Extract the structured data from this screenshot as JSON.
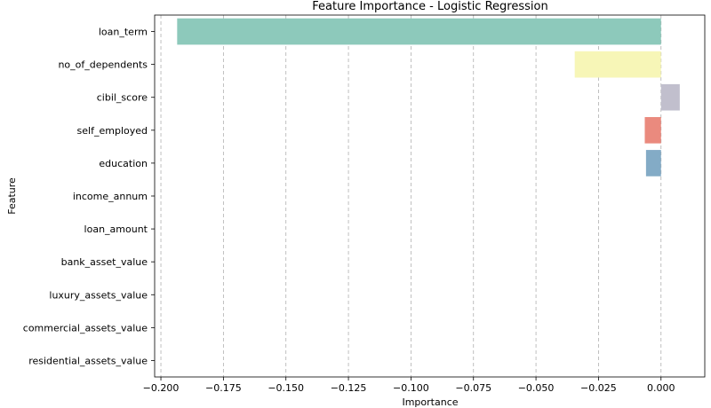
{
  "chart_data": {
    "type": "bar",
    "orientation": "horizontal",
    "title": "Feature Importance - Logistic Regression",
    "xlabel": "Importance",
    "ylabel": "Feature",
    "xlim": [
      -0.2025,
      0.0175
    ],
    "xticks": [
      -0.2,
      -0.175,
      -0.15,
      -0.125,
      -0.1,
      -0.075,
      -0.05,
      -0.025,
      0.0
    ],
    "xtick_labels": [
      "−0.200",
      "−0.175",
      "−0.150",
      "−0.125",
      "−0.100",
      "−0.075",
      "−0.050",
      "−0.025",
      "0.000"
    ],
    "grid": "x, dashed",
    "categories": [
      "loan_term",
      "no_of_dependents",
      "cibil_score",
      "self_employed",
      "education",
      "income_annum",
      "loan_amount",
      "bank_asset_value",
      "luxury_assets_value",
      "commercial_assets_value",
      "residential_assets_value"
    ],
    "values": [
      -0.1935,
      -0.0345,
      0.0075,
      -0.0065,
      -0.006,
      0.0,
      0.0,
      0.0,
      0.0,
      0.0,
      0.0
    ],
    "colors": [
      "#8dc9bb",
      "#f7f6b7",
      "#c1bfcd",
      "#ea8a7e",
      "#83abc6",
      "#f1b271",
      "#b4d173",
      "#f6cde2",
      "#d9d9d9",
      "#b794bd",
      "#c8e6c1"
    ]
  }
}
